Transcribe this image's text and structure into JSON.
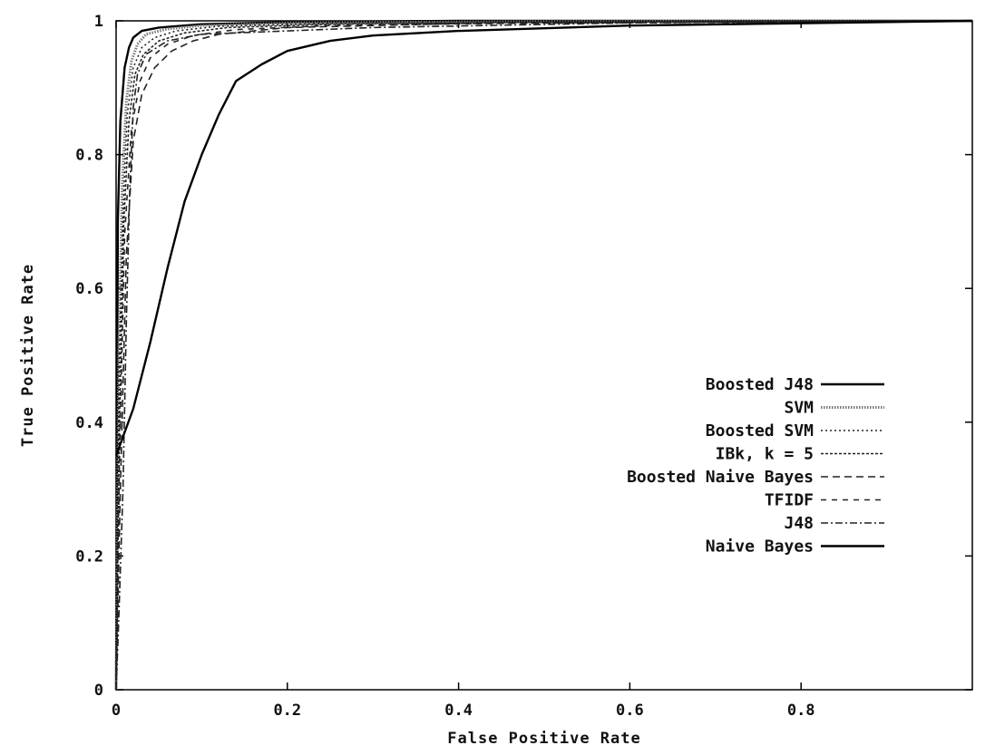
{
  "chart_data": {
    "type": "line",
    "title": "",
    "xlabel": "False Positive Rate",
    "ylabel": "True Positive Rate",
    "xlim": [
      0,
      1
    ],
    "ylim": [
      0,
      1
    ],
    "x_ticks": [
      0,
      0.2,
      0.4,
      0.6,
      0.8
    ],
    "x_tick_labels": [
      "0",
      "0.2",
      "0.4",
      "0.6",
      "0.8"
    ],
    "y_ticks": [
      0,
      0.2,
      0.4,
      0.6,
      0.8,
      1
    ],
    "y_tick_labels": [
      "0",
      "0.2",
      "0.4",
      "0.6",
      "0.8",
      "1"
    ],
    "grid": false,
    "legend_position": "right-middle",
    "series": [
      {
        "name": "Boosted J48",
        "style": "solid",
        "x": [
          0,
          0.002,
          0.005,
          0.01,
          0.015,
          0.02,
          0.03,
          0.05,
          0.1,
          0.2,
          0.4,
          1.0
        ],
        "y": [
          0,
          0.7,
          0.85,
          0.93,
          0.96,
          0.975,
          0.985,
          0.99,
          0.995,
          0.998,
          1.0,
          1.0
        ]
      },
      {
        "name": "SVM",
        "style": "dotted-dense",
        "x": [
          0,
          0.003,
          0.007,
          0.012,
          0.018,
          0.025,
          0.035,
          0.06,
          0.1,
          0.2,
          0.5,
          1.0
        ],
        "y": [
          0,
          0.5,
          0.75,
          0.88,
          0.94,
          0.965,
          0.98,
          0.988,
          0.993,
          0.997,
          0.999,
          1.0
        ]
      },
      {
        "name": "Boosted SVM",
        "style": "dotted",
        "x": [
          0,
          0.003,
          0.008,
          0.013,
          0.02,
          0.03,
          0.045,
          0.07,
          0.12,
          0.25,
          0.5,
          1.0
        ],
        "y": [
          0,
          0.45,
          0.72,
          0.86,
          0.93,
          0.96,
          0.975,
          0.985,
          0.992,
          0.996,
          0.998,
          1.0
        ]
      },
      {
        "name": "IBk, k = 5",
        "style": "dashed-short",
        "x": [
          0,
          0.004,
          0.009,
          0.015,
          0.022,
          0.032,
          0.05,
          0.08,
          0.13,
          0.25,
          0.5,
          1.0
        ],
        "y": [
          0,
          0.4,
          0.7,
          0.85,
          0.92,
          0.95,
          0.97,
          0.982,
          0.99,
          0.995,
          0.998,
          1.0
        ]
      },
      {
        "name": "Boosted Naive Bayes",
        "style": "dashed",
        "x": [
          0,
          0.005,
          0.012,
          0.02,
          0.03,
          0.045,
          0.065,
          0.09,
          0.12,
          0.2,
          0.4,
          1.0
        ],
        "y": [
          0,
          0.3,
          0.65,
          0.82,
          0.89,
          0.93,
          0.955,
          0.97,
          0.98,
          0.99,
          0.996,
          1.0
        ]
      },
      {
        "name": "TFIDF",
        "style": "dashed-long",
        "x": [
          0,
          0.004,
          0.01,
          0.018,
          0.028,
          0.04,
          0.06,
          0.09,
          0.14,
          0.25,
          0.5,
          1.0
        ],
        "y": [
          0,
          0.35,
          0.68,
          0.84,
          0.91,
          0.945,
          0.965,
          0.978,
          0.987,
          0.993,
          0.997,
          1.0
        ]
      },
      {
        "name": "J48",
        "style": "dash-dot",
        "x": [
          0,
          0.003,
          0.008,
          0.012,
          0.016,
          0.02,
          0.025,
          0.035,
          0.06,
          0.1,
          0.3,
          0.6,
          1.0
        ],
        "y": [
          0,
          0.1,
          0.3,
          0.55,
          0.75,
          0.87,
          0.92,
          0.95,
          0.97,
          0.98,
          0.99,
          0.997,
          1.0
        ]
      },
      {
        "name": "Naive Bayes",
        "style": "solid",
        "x": [
          0,
          0.02,
          0.04,
          0.06,
          0.08,
          0.1,
          0.12,
          0.14,
          0.17,
          0.2,
          0.25,
          0.3,
          0.4,
          0.6,
          1.0
        ],
        "y": [
          0.35,
          0.42,
          0.52,
          0.63,
          0.73,
          0.8,
          0.86,
          0.91,
          0.935,
          0.955,
          0.97,
          0.978,
          0.985,
          0.993,
          1.0
        ]
      }
    ]
  }
}
